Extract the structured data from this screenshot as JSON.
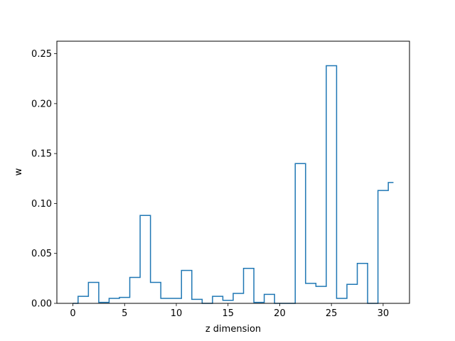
{
  "chart_data": {
    "type": "line",
    "drawstyle": "steps-mid",
    "title": "",
    "xlabel": "z dimension",
    "ylabel": "w",
    "xlim": [
      -1.55,
      32.55
    ],
    "ylim": [
      0,
      0.2625
    ],
    "xticks": [
      0,
      5,
      10,
      15,
      20,
      25,
      30
    ],
    "xtick_labels": [
      "0",
      "5",
      "10",
      "15",
      "20",
      "25",
      "30"
    ],
    "yticks": [
      0.0,
      0.05,
      0.1,
      0.15,
      0.2,
      0.25
    ],
    "ytick_labels": [
      "0.00",
      "0.05",
      "0.10",
      "0.15",
      "0.20",
      "0.25"
    ],
    "grid": false,
    "color": "#1f77b4",
    "series": [
      {
        "x": [
          0,
          1,
          2,
          3,
          4,
          5,
          6,
          7,
          8,
          9,
          10,
          11,
          12,
          13,
          14,
          15,
          16,
          17,
          18,
          19,
          20,
          21,
          22,
          23,
          24,
          25,
          26,
          27,
          28,
          29,
          30,
          31
        ],
        "values": [
          0.0,
          0.007,
          0.021,
          0.001,
          0.005,
          0.006,
          0.026,
          0.088,
          0.021,
          0.005,
          0.005,
          0.033,
          0.004,
          0.0,
          0.007,
          0.003,
          0.01,
          0.035,
          0.001,
          0.009,
          0.0,
          0.0,
          0.14,
          0.02,
          0.017,
          0.238,
          0.005,
          0.019,
          0.04,
          0.0,
          0.113,
          0.121
        ]
      }
    ]
  }
}
